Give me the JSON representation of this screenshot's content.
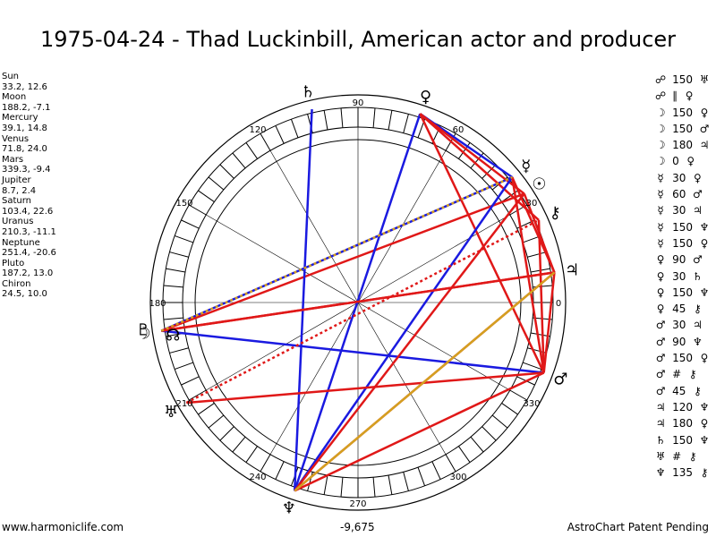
{
  "title": "1975-04-24 - Thad Luckinbill, American actor and producer",
  "planets_panel": [
    {
      "name": "Sun",
      "coords": "33.2, 12.6"
    },
    {
      "name": "Moon",
      "coords": "188.2, -7.1"
    },
    {
      "name": "Mercury",
      "coords": "39.1, 14.8"
    },
    {
      "name": "Venus",
      "coords": "71.8, 24.0"
    },
    {
      "name": "Mars",
      "coords": "339.3, -9.4"
    },
    {
      "name": "Jupiter",
      "coords": "8.7, 2.4"
    },
    {
      "name": "Saturn",
      "coords": "103.4, 22.6"
    },
    {
      "name": "Uranus",
      "coords": "210.3, -11.1"
    },
    {
      "name": "Neptune",
      "coords": "251.4, -20.6"
    },
    {
      "name": "Pluto",
      "coords": "187.2, 13.0"
    },
    {
      "name": "Chiron",
      "coords": "24.5, 10.0"
    }
  ],
  "glyphs": {
    "sun": "☉",
    "moon": "☽",
    "mercury": "☿",
    "venus": "♀",
    "mars": "♂",
    "jupiter": "♃",
    "saturn": "♄",
    "uranus": "♅",
    "neptune": "♆",
    "pluto": "♇",
    "chiron": "⚷",
    "node": "☊",
    "opposition": "☍",
    "conjunction": "☌",
    "parallel": "∥",
    "contraparallel": "#"
  },
  "aspects": [
    {
      "p1": "☍",
      "angle": "150",
      "p2": "♅"
    },
    {
      "p1": "☍",
      "angle": "∥",
      "p2": "♀"
    },
    {
      "p1": "☽",
      "angle": "150",
      "p2": "♀"
    },
    {
      "p1": "☽",
      "angle": "150",
      "p2": "♂"
    },
    {
      "p1": "☽",
      "angle": "180",
      "p2": "♃"
    },
    {
      "p1": "☽",
      "angle": "0",
      "p2": "♀"
    },
    {
      "p1": "☿",
      "angle": "30",
      "p2": "♀"
    },
    {
      "p1": "☿",
      "angle": "60",
      "p2": "♂"
    },
    {
      "p1": "☿",
      "angle": "30",
      "p2": "♃"
    },
    {
      "p1": "☿",
      "angle": "150",
      "p2": "♆"
    },
    {
      "p1": "☿",
      "angle": "150",
      "p2": "♀"
    },
    {
      "p1": "♀",
      "angle": "90",
      "p2": "♂"
    },
    {
      "p1": "♀",
      "angle": "30",
      "p2": "♄"
    },
    {
      "p1": "♀",
      "angle": "150",
      "p2": "♆"
    },
    {
      "p1": "♀",
      "angle": "45",
      "p2": "⚷"
    },
    {
      "p1": "♂",
      "angle": "30",
      "p2": "♃"
    },
    {
      "p1": "♂",
      "angle": "90",
      "p2": "♆"
    },
    {
      "p1": "♂",
      "angle": "150",
      "p2": "♀"
    },
    {
      "p1": "♂",
      "angle": "#",
      "p2": "⚷"
    },
    {
      "p1": "♂",
      "angle": "45",
      "p2": "⚷"
    },
    {
      "p1": "♃",
      "angle": "120",
      "p2": "♆"
    },
    {
      "p1": "♃",
      "angle": "180",
      "p2": "♀"
    },
    {
      "p1": "♄",
      "angle": "150",
      "p2": "♆"
    },
    {
      "p1": "♅",
      "angle": "#",
      "p2": "⚷"
    },
    {
      "p1": "♆",
      "angle": "135",
      "p2": "⚷"
    }
  ],
  "degree_labels": [
    "0",
    "30",
    "60",
    "90",
    "120",
    "150",
    "180",
    "210",
    "240",
    "270",
    "300",
    "330"
  ],
  "center_readout": "-9,675",
  "footer": {
    "left": "www.harmoniclife.com",
    "right": "AstroChart Patent Pending"
  },
  "colors": {
    "red": "#e01818",
    "blue": "#1a1ae0",
    "gold": "#d4a020",
    "dotted_red": "#e01818",
    "dotted_gold": "#d4a020"
  }
}
